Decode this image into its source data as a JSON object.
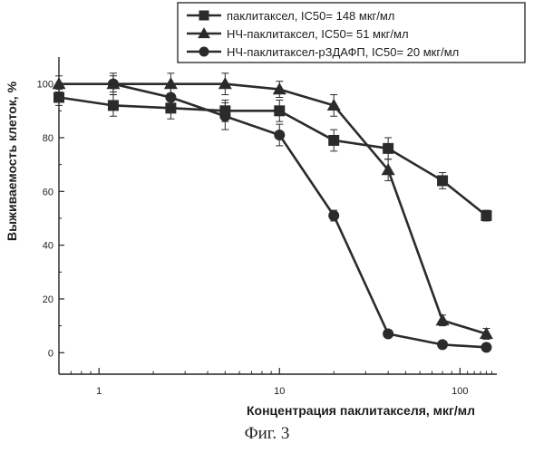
{
  "chart_data": {
    "type": "line",
    "xscale": "log",
    "xlabel": "Концентрация паклитакселя, мкг/мл",
    "ylabel": "Выживаемость клеток, %",
    "xlim": [
      0.6,
      160
    ],
    "ylim": [
      -8,
      110
    ],
    "xticks": [
      1,
      10,
      100
    ],
    "xtick_labels": [
      "1",
      "10",
      "100"
    ],
    "yticks": [
      0,
      20,
      40,
      60,
      80,
      100
    ],
    "ytick_labels": [
      "0",
      "20",
      "40",
      "60",
      "80",
      "100"
    ],
    "grid": false,
    "legend_position": "top-right",
    "series": [
      {
        "name": "паклитаксел, IC50= 148 мкг/мл",
        "marker": "square",
        "x": [
          0.6,
          1.2,
          2.5,
          5,
          10,
          20,
          40,
          80,
          140
        ],
        "y": [
          95,
          92,
          91,
          90,
          90,
          79,
          76,
          64,
          51
        ],
        "err": [
          3,
          4,
          4,
          4,
          4,
          4,
          4,
          3,
          2
        ]
      },
      {
        "name": "НЧ-паклитаксел, IC50= 51 мкг/мл",
        "marker": "triangle",
        "x": [
          0.6,
          1.2,
          2.5,
          5,
          10,
          20,
          40,
          80,
          140
        ],
        "y": [
          100,
          100,
          100,
          100,
          98,
          92,
          68,
          12,
          7
        ],
        "err": [
          3,
          4,
          4,
          4,
          3,
          4,
          4,
          2,
          2
        ]
      },
      {
        "name": "НЧ-паклитаксел-рЗДАФП, IC50= 20 мкг/мл",
        "marker": "circle",
        "x": [
          1.2,
          2.5,
          5,
          10,
          20,
          40,
          80,
          140
        ],
        "y": [
          100,
          95,
          88,
          81,
          51,
          7,
          3,
          2
        ],
        "err": [
          3,
          4,
          5,
          4,
          2,
          1,
          1,
          1
        ]
      }
    ]
  },
  "caption": "Фиг. 3",
  "colors": {
    "line": "#2b2b2b",
    "axis": "#222222"
  }
}
